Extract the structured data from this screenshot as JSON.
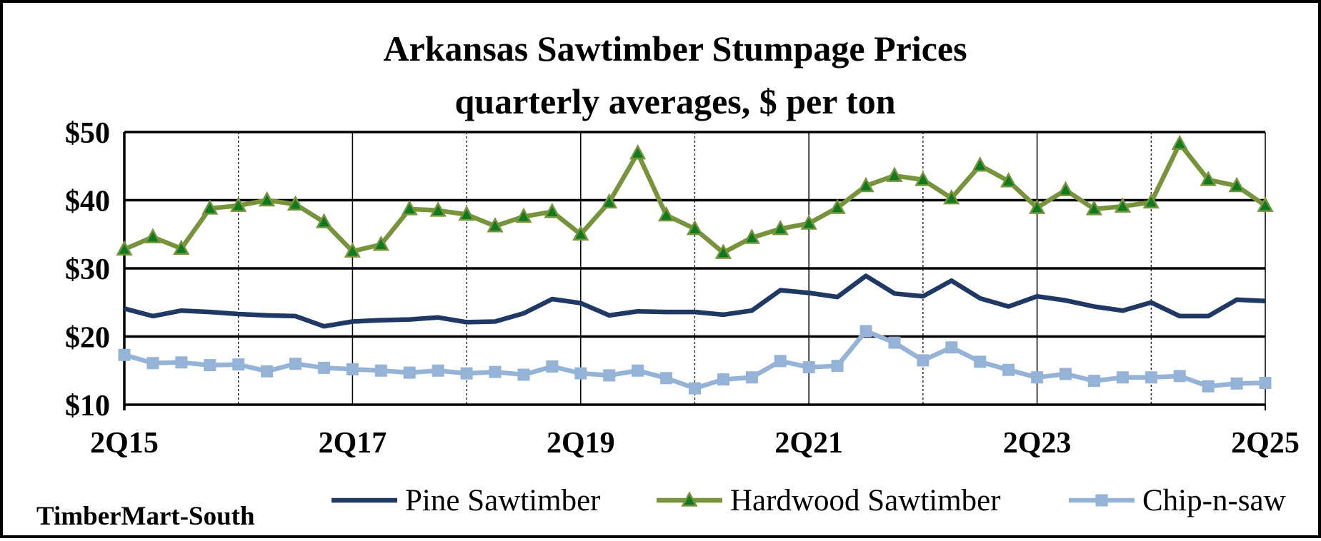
{
  "chart_data": {
    "type": "line",
    "title": "Arkansas Sawtimber Stumpage Prices",
    "subtitle": "quarterly averages, $ per ton",
    "source": "TimberMart-South",
    "ylim": [
      10,
      50
    ],
    "ytick_values": [
      10,
      20,
      30,
      40,
      50
    ],
    "ytick_labels": [
      "$10",
      "$20",
      "$30",
      "$40",
      "$50"
    ],
    "xtick_labels": [
      "2Q15",
      "2Q17",
      "2Q19",
      "2Q21",
      "2Q23",
      "2Q25"
    ],
    "x": [
      "2Q15",
      "3Q15",
      "4Q15",
      "1Q16",
      "2Q16",
      "3Q16",
      "4Q16",
      "1Q17",
      "2Q17",
      "3Q17",
      "4Q17",
      "1Q18",
      "2Q18",
      "3Q18",
      "4Q18",
      "1Q19",
      "2Q19",
      "3Q19",
      "4Q19",
      "1Q20",
      "2Q20",
      "3Q20",
      "4Q20",
      "1Q21",
      "2Q21",
      "3Q21",
      "4Q21",
      "1Q22",
      "2Q22",
      "3Q22",
      "4Q22",
      "1Q23",
      "2Q23",
      "3Q23",
      "4Q23",
      "1Q24",
      "2Q24",
      "3Q24",
      "4Q24",
      "1Q25",
      "2Q25"
    ],
    "grid": "horizontal major lines; vertical lines at each year",
    "legend_placement": "bottom",
    "series": [
      {
        "name": "Pine Sawtimber",
        "color": "#1f3864",
        "marker": "none",
        "values": [
          24.1,
          23.0,
          23.8,
          23.6,
          23.3,
          23.1,
          23.0,
          21.5,
          22.2,
          22.4,
          22.5,
          22.8,
          22.1,
          22.2,
          23.4,
          25.5,
          24.9,
          23.1,
          23.7,
          23.6,
          23.6,
          23.2,
          23.8,
          26.8,
          26.4,
          25.8,
          28.9,
          26.3,
          25.9,
          28.2,
          25.6,
          24.4,
          25.9,
          25.3,
          24.4,
          23.8,
          25.0,
          23.0,
          23.0,
          25.4,
          25.2
        ]
      },
      {
        "name": "Hardwood Sawtimber",
        "color": "#77933c",
        "marker": "triangle",
        "values": [
          32.8,
          34.6,
          32.9,
          38.8,
          39.2,
          40.0,
          39.4,
          36.8,
          32.5,
          33.5,
          38.7,
          38.5,
          37.9,
          36.2,
          37.6,
          38.3,
          35.0,
          39.7,
          46.9,
          37.8,
          35.8,
          32.3,
          34.5,
          35.8,
          36.6,
          38.9,
          42.1,
          43.6,
          43.0,
          40.3,
          45.1,
          42.8,
          38.9,
          41.5,
          38.7,
          39.1,
          39.7,
          48.3,
          43.0,
          42.1,
          39.2
        ]
      },
      {
        "name": "Chip-n-saw",
        "color": "#95b3d7",
        "marker": "square",
        "values": [
          17.3,
          16.1,
          16.2,
          15.8,
          15.9,
          14.9,
          16.0,
          15.4,
          15.2,
          15.0,
          14.7,
          15.0,
          14.6,
          14.8,
          14.4,
          15.6,
          14.6,
          14.3,
          15.0,
          13.9,
          12.4,
          13.7,
          14.0,
          16.4,
          15.5,
          15.7,
          20.8,
          19.1,
          16.5,
          18.4,
          16.3,
          15.1,
          14.0,
          14.5,
          13.5,
          14.0,
          14.0,
          14.2,
          12.7,
          13.1,
          13.2
        ]
      }
    ]
  }
}
